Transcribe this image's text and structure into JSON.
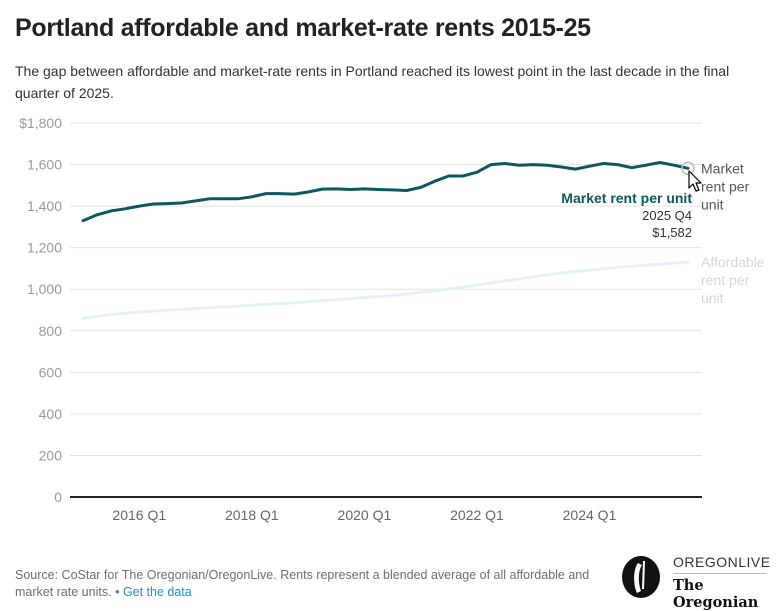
{
  "header": {
    "title": "Portland affordable and market-rate rents 2015-25",
    "subtitle": "The gap between affordable and market-rate rents in Portland reached its lowest point in the last decade in the final quarter of 2025."
  },
  "tooltip": {
    "series": "Market rent per unit",
    "period": "2025 Q4",
    "value": "$1,582"
  },
  "footer": {
    "source": "Source: CoStar for The Oregonian/OregonLive. Rents represent a blended average of all affordable and market rate units.",
    "separator": "•",
    "get_data_link": "Get the data"
  },
  "logo": {
    "top": "OREGONLIVE",
    "bottom": "The Oregonian"
  },
  "colors": {
    "market": "#0d5860",
    "affordable": "#e6f1f3",
    "affordable_label": "#d6d6d6",
    "market_label": "#555555"
  },
  "chart_data": {
    "type": "line",
    "title": "Portland affordable and market-rate rents 2015-25",
    "xlabel": "",
    "ylabel": "",
    "ylim": [
      0,
      1800
    ],
    "yticks": [
      0,
      200,
      400,
      600,
      800,
      1000,
      1200,
      1400,
      1600,
      1800
    ],
    "ytick_labels": [
      "0",
      "200",
      "400",
      "600",
      "800",
      "1,000",
      "1,200",
      "1,400",
      "1,600",
      "$1,800"
    ],
    "xtick_labels": [
      "2016 Q1",
      "2018 Q1",
      "2020 Q1",
      "2022 Q1",
      "2024 Q1"
    ],
    "xtick_indices": [
      4,
      12,
      20,
      28,
      36
    ],
    "grid": true,
    "legend": "direct-labels-right",
    "x": [
      "2015 Q1",
      "2015 Q2",
      "2015 Q3",
      "2015 Q4",
      "2016 Q1",
      "2016 Q2",
      "2016 Q3",
      "2016 Q4",
      "2017 Q1",
      "2017 Q2",
      "2017 Q3",
      "2017 Q4",
      "2018 Q1",
      "2018 Q2",
      "2018 Q3",
      "2018 Q4",
      "2019 Q1",
      "2019 Q2",
      "2019 Q3",
      "2019 Q4",
      "2020 Q1",
      "2020 Q2",
      "2020 Q3",
      "2020 Q4",
      "2021 Q1",
      "2021 Q2",
      "2021 Q3",
      "2021 Q4",
      "2022 Q1",
      "2022 Q2",
      "2022 Q3",
      "2022 Q4",
      "2023 Q1",
      "2023 Q2",
      "2023 Q3",
      "2023 Q4",
      "2024 Q1",
      "2024 Q2",
      "2024 Q3",
      "2024 Q4",
      "2025 Q1",
      "2025 Q2",
      "2025 Q3",
      "2025 Q4"
    ],
    "series": [
      {
        "name": "Market rent per unit",
        "label_lines": [
          "Market",
          "rent per",
          "unit"
        ],
        "values": [
          1330,
          1358,
          1377,
          1387,
          1400,
          1410,
          1412,
          1415,
          1425,
          1435,
          1435,
          1435,
          1445,
          1460,
          1460,
          1458,
          1468,
          1482,
          1483,
          1480,
          1483,
          1480,
          1478,
          1475,
          1490,
          1520,
          1545,
          1545,
          1563,
          1600,
          1605,
          1597,
          1600,
          1597,
          1588,
          1578,
          1592,
          1605,
          1600,
          1585,
          1597,
          1610,
          1597,
          1582
        ]
      },
      {
        "name": "Affordable rent per unit",
        "label_lines": [
          "Affordable",
          "rent per",
          "unit"
        ],
        "values": [
          861,
          870,
          878,
          885,
          890,
          895,
          899,
          903,
          907,
          911,
          915,
          919,
          923,
          927,
          931,
          935,
          940,
          945,
          950,
          955,
          960,
          965,
          970,
          977,
          985,
          993,
          1001,
          1010,
          1020,
          1030,
          1040,
          1050,
          1060,
          1070,
          1078,
          1085,
          1092,
          1099,
          1105,
          1110,
          1115,
          1120,
          1126,
          1131
        ]
      }
    ],
    "highlight": {
      "series": "Market rent per unit",
      "x": "2025 Q4",
      "y": 1582
    }
  }
}
